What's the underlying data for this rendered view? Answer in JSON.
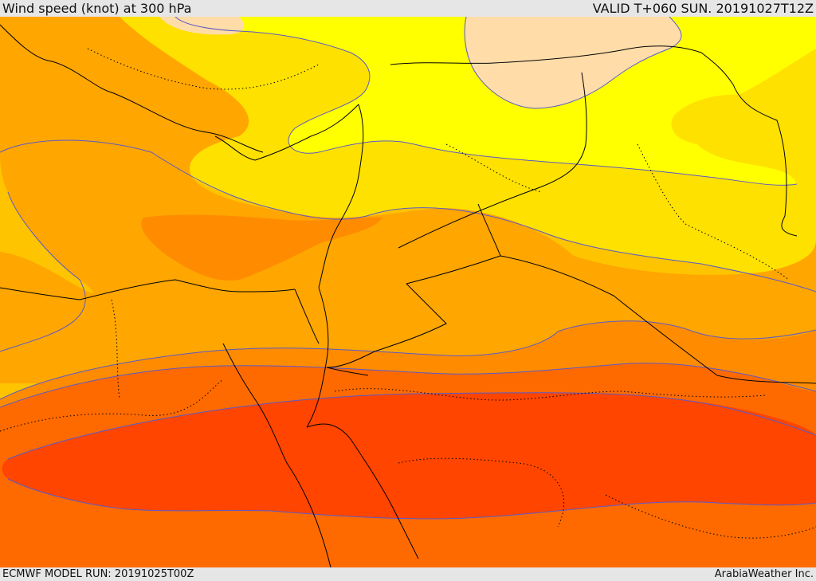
{
  "header": {
    "title": "Wind speed (knot) at 300 hPa",
    "valid": "VALID T+060 SUN. 20191027T12Z"
  },
  "footer": {
    "model_run": "ECMWF MODEL RUN: 20191025T00Z",
    "credit": "ArabiaWeather Inc."
  },
  "palette": {
    "band_1": "#ffdca8",
    "band_2": "#ffff00",
    "band_3": "#ffe100",
    "band_4": "#ffc400",
    "band_5": "#ffa600",
    "band_6": "#ff8c00",
    "band_7": "#ff6a00",
    "band_8": "#ff4500",
    "contour_line": "#5a5ac8",
    "border_line": "#000000"
  }
}
